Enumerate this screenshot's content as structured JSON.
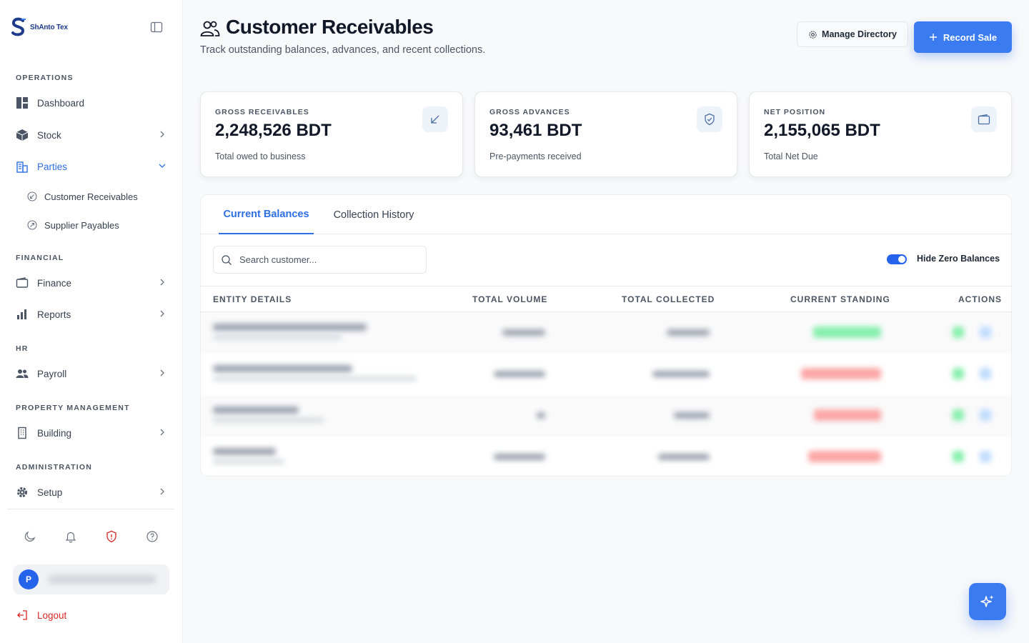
{
  "brand": {
    "name": "ShAnto Tex"
  },
  "sidebar": {
    "sections": {
      "operations": "OPERATIONS",
      "financial": "FINANCIAL",
      "hr": "HR",
      "property": "PROPERTY MANAGEMENT",
      "administration": "ADMINISTRATION"
    },
    "items": {
      "dashboard": "Dashboard",
      "stock": "Stock",
      "parties": "Parties",
      "customer_receivables": "Customer Receivables",
      "supplier_payables": "Supplier Payables",
      "finance": "Finance",
      "reports": "Reports",
      "payroll": "Payroll",
      "building": "Building",
      "setup": "Setup"
    },
    "user": {
      "initial": "P"
    },
    "logout": "Logout"
  },
  "header": {
    "title": "Customer Receivables",
    "subtitle": "Track outstanding balances, advances, and recent collections.",
    "manage_label": "Manage Directory",
    "record_label": "Record Sale"
  },
  "stats": [
    {
      "label": "GROSS RECEIVABLES",
      "value": "2,248,526 BDT",
      "caption": "Total owed to business",
      "icon": "arrow-down-left-icon"
    },
    {
      "label": "GROSS ADVANCES",
      "value": "93,461 BDT",
      "caption": "Pre-payments received",
      "icon": "shield-check-icon"
    },
    {
      "label": "NET POSITION",
      "value": "2,155,065 BDT",
      "caption": "Total Net Due",
      "icon": "wallet-icon"
    }
  ],
  "tabs": {
    "current": "Current Balances",
    "history": "Collection History"
  },
  "search": {
    "placeholder": "Search customer..."
  },
  "toggle": {
    "label": "Hide Zero Balances",
    "on": true
  },
  "table": {
    "headers": {
      "entity": "ENTITY DETAILS",
      "volume": "TOTAL VOLUME",
      "collected": "TOTAL COLLECTED",
      "standing": "CURRENT STANDING",
      "actions": "ACTIONS"
    }
  },
  "colors": {
    "accent": "#3b7bf2",
    "active_nav": "#2f6fe4",
    "danger": "#dc2626",
    "success": "#22c55e"
  }
}
